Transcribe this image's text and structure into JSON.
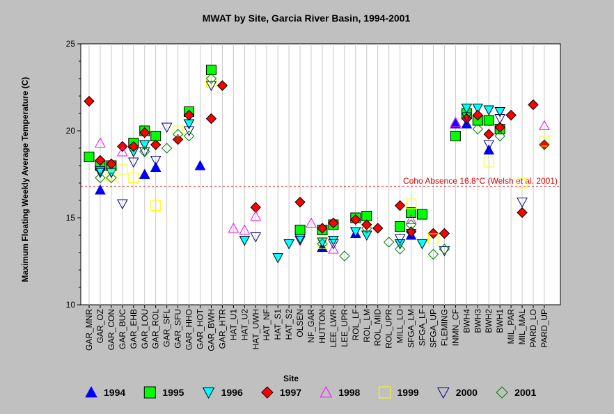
{
  "chart_data": {
    "type": "scatter",
    "title": "MWAT by Site, Garcia River Basin, 1994-2001",
    "xlabel": "Site",
    "ylabel": "Maximum Floating Weekly Average Temperature (C)",
    "ylim": [
      10,
      25
    ],
    "yticks": [
      10,
      15,
      20,
      25
    ],
    "grid": {
      "vertical": true,
      "horizontal": false
    },
    "legend_position": "bottom",
    "categories": [
      "GAR_MNR",
      "GAR_OZ",
      "GAR_CON",
      "GAR_BUC",
      "GAR_EHB",
      "GAR_LOU",
      "GAR_ROL",
      "GAR_SFL",
      "GAR_SFU",
      "GAR_HHO",
      "GAR_HOT",
      "GAR_BWH",
      "GAR_HTR",
      "HAT_U1",
      "HAT_U2",
      "HAT_UWH",
      "HAT_NF",
      "HAT_S1",
      "HAT_S2",
      "OLSEN",
      "NF_GAR",
      "HUTTON",
      "LEE_LWR",
      "LEE_UPR",
      "ROL_LF",
      "ROL_LM",
      "ROL_MID",
      "ROL_UPR",
      "MILL_LO",
      "SFGA_LM",
      "SFGA_LF",
      "SFGA_UP",
      "FLEMING",
      "INMN_CF",
      "BWH4",
      "BWH3",
      "BWH2",
      "BWH1",
      "MIL_PAR",
      "MIL_MAL",
      "PARD_LO",
      "PARD_UP"
    ],
    "annotation": {
      "text": "Coho Absence 16.8°C (Welsh et al. 2001)",
      "y": 16.8,
      "color": "#e00000"
    },
    "series": [
      {
        "name": "1994",
        "marker": "triangle-up",
        "color": "#0000ff",
        "fill": "#0000ff",
        "points": [
          [
            1,
            16.6
          ],
          [
            5,
            17.5
          ],
          [
            6,
            17.9
          ],
          [
            10,
            18.0
          ],
          [
            24,
            14.1
          ],
          [
            21,
            13.3
          ],
          [
            29,
            14.0
          ],
          [
            33,
            20.4
          ],
          [
            34,
            20.4
          ],
          [
            36,
            18.9
          ]
        ]
      },
      {
        "name": "1995",
        "marker": "square",
        "color": "#000000",
        "fill": "#00ff00",
        "points": [
          [
            0,
            18.5
          ],
          [
            1,
            18.0
          ],
          [
            2,
            18.0
          ],
          [
            4,
            19.3
          ],
          [
            5,
            20.0
          ],
          [
            6,
            19.7
          ],
          [
            9,
            21.1
          ],
          [
            11,
            23.5
          ],
          [
            19,
            14.3
          ],
          [
            21,
            14.3
          ],
          [
            22,
            14.6
          ],
          [
            24,
            15.0
          ],
          [
            25,
            15.1
          ],
          [
            28,
            14.5
          ],
          [
            29,
            15.3
          ],
          [
            30,
            15.2
          ],
          [
            33,
            19.7
          ],
          [
            34,
            21.0
          ],
          [
            35,
            20.6
          ],
          [
            36,
            20.6
          ],
          [
            37,
            20.1
          ]
        ]
      },
      {
        "name": "1996",
        "marker": "triangle-down",
        "color": "#000000",
        "fill": "#00ffff",
        "points": [
          [
            1,
            17.6
          ],
          [
            2,
            17.6
          ],
          [
            4,
            18.8
          ],
          [
            5,
            19.2
          ],
          [
            9,
            20.4
          ],
          [
            14,
            13.7
          ],
          [
            17,
            12.7
          ],
          [
            18,
            13.5
          ],
          [
            19,
            13.8
          ],
          [
            21,
            13.6
          ],
          [
            22,
            13.7
          ],
          [
            24,
            14.2
          ],
          [
            25,
            14.0
          ],
          [
            28,
            13.5
          ],
          [
            30,
            13.5
          ],
          [
            34,
            21.3
          ],
          [
            35,
            21.3
          ],
          [
            36,
            21.2
          ],
          [
            37,
            21.1
          ]
        ]
      },
      {
        "name": "1997",
        "marker": "diamond",
        "color": "#000000",
        "fill": "#ff0000",
        "points": [
          [
            0,
            21.7
          ],
          [
            1,
            18.3
          ],
          [
            2,
            18.1
          ],
          [
            3,
            19.1
          ],
          [
            4,
            19.1
          ],
          [
            5,
            19.9
          ],
          [
            6,
            19.2
          ],
          [
            8,
            19.5
          ],
          [
            9,
            20.9
          ],
          [
            11,
            20.7
          ],
          [
            12,
            22.6
          ],
          [
            15,
            15.6
          ],
          [
            19,
            15.9
          ],
          [
            21,
            14.4
          ],
          [
            22,
            14.7
          ],
          [
            24,
            14.9
          ],
          [
            25,
            14.6
          ],
          [
            26,
            14.4
          ],
          [
            28,
            15.7
          ],
          [
            29,
            14.2
          ],
          [
            31,
            14.1
          ],
          [
            32,
            14.1
          ],
          [
            34,
            20.7
          ],
          [
            35,
            20.9
          ],
          [
            36,
            19.8
          ],
          [
            37,
            20.2
          ],
          [
            38,
            20.9
          ],
          [
            39,
            15.3
          ],
          [
            40,
            21.5
          ],
          [
            41,
            19.2
          ]
        ]
      },
      {
        "name": "1998",
        "marker": "triangle-up",
        "color": "#ff00ff",
        "fill": "none",
        "points": [
          [
            1,
            19.3
          ],
          [
            3,
            18.8
          ],
          [
            13,
            14.4
          ],
          [
            14,
            14.3
          ],
          [
            15,
            15.1
          ],
          [
            20,
            14.7
          ],
          [
            22,
            13.2
          ],
          [
            29,
            14.9
          ],
          [
            33,
            20.5
          ],
          [
            41,
            20.3
          ]
        ]
      },
      {
        "name": "1999",
        "marker": "square",
        "color": "#ffff00",
        "fill": "none",
        "points": [
          [
            2,
            17.4
          ],
          [
            3,
            17.8
          ],
          [
            4,
            17.3
          ],
          [
            6,
            15.7
          ],
          [
            8,
            20.0
          ],
          [
            11,
            22.8
          ],
          [
            21,
            13.5
          ],
          [
            29,
            15.8
          ],
          [
            31,
            13.8
          ],
          [
            36,
            18.2
          ],
          [
            39,
            17.0
          ],
          [
            41,
            19.4
          ]
        ]
      },
      {
        "name": "2000",
        "marker": "triangle-down",
        "color": "#000080",
        "fill": "none",
        "points": [
          [
            1,
            17.7
          ],
          [
            3,
            15.8
          ],
          [
            4,
            18.2
          ],
          [
            5,
            18.8
          ],
          [
            6,
            18.3
          ],
          [
            7,
            20.2
          ],
          [
            9,
            20.0
          ],
          [
            11,
            22.6
          ],
          [
            15,
            13.9
          ],
          [
            19,
            13.7
          ],
          [
            22,
            13.5
          ],
          [
            24,
            14.2
          ],
          [
            28,
            13.8
          ],
          [
            29,
            14.1
          ],
          [
            32,
            13.1
          ],
          [
            34,
            20.8
          ],
          [
            36,
            19.2
          ],
          [
            37,
            20.7
          ],
          [
            39,
            15.9
          ]
        ]
      },
      {
        "name": "2001",
        "marker": "diamond",
        "color": "#008000",
        "fill": "none",
        "points": [
          [
            1,
            17.3
          ],
          [
            2,
            17.3
          ],
          [
            5,
            18.8
          ],
          [
            7,
            19.0
          ],
          [
            8,
            19.8
          ],
          [
            9,
            19.7
          ],
          [
            11,
            23.0
          ],
          [
            21,
            13.5
          ],
          [
            23,
            12.8
          ],
          [
            25,
            14.4
          ],
          [
            27,
            13.6
          ],
          [
            28,
            13.2
          ],
          [
            29,
            14.6
          ],
          [
            31,
            12.9
          ],
          [
            32,
            13.2
          ],
          [
            35,
            20.1
          ],
          [
            37,
            19.7
          ],
          [
            41,
            19.2
          ]
        ]
      }
    ]
  }
}
